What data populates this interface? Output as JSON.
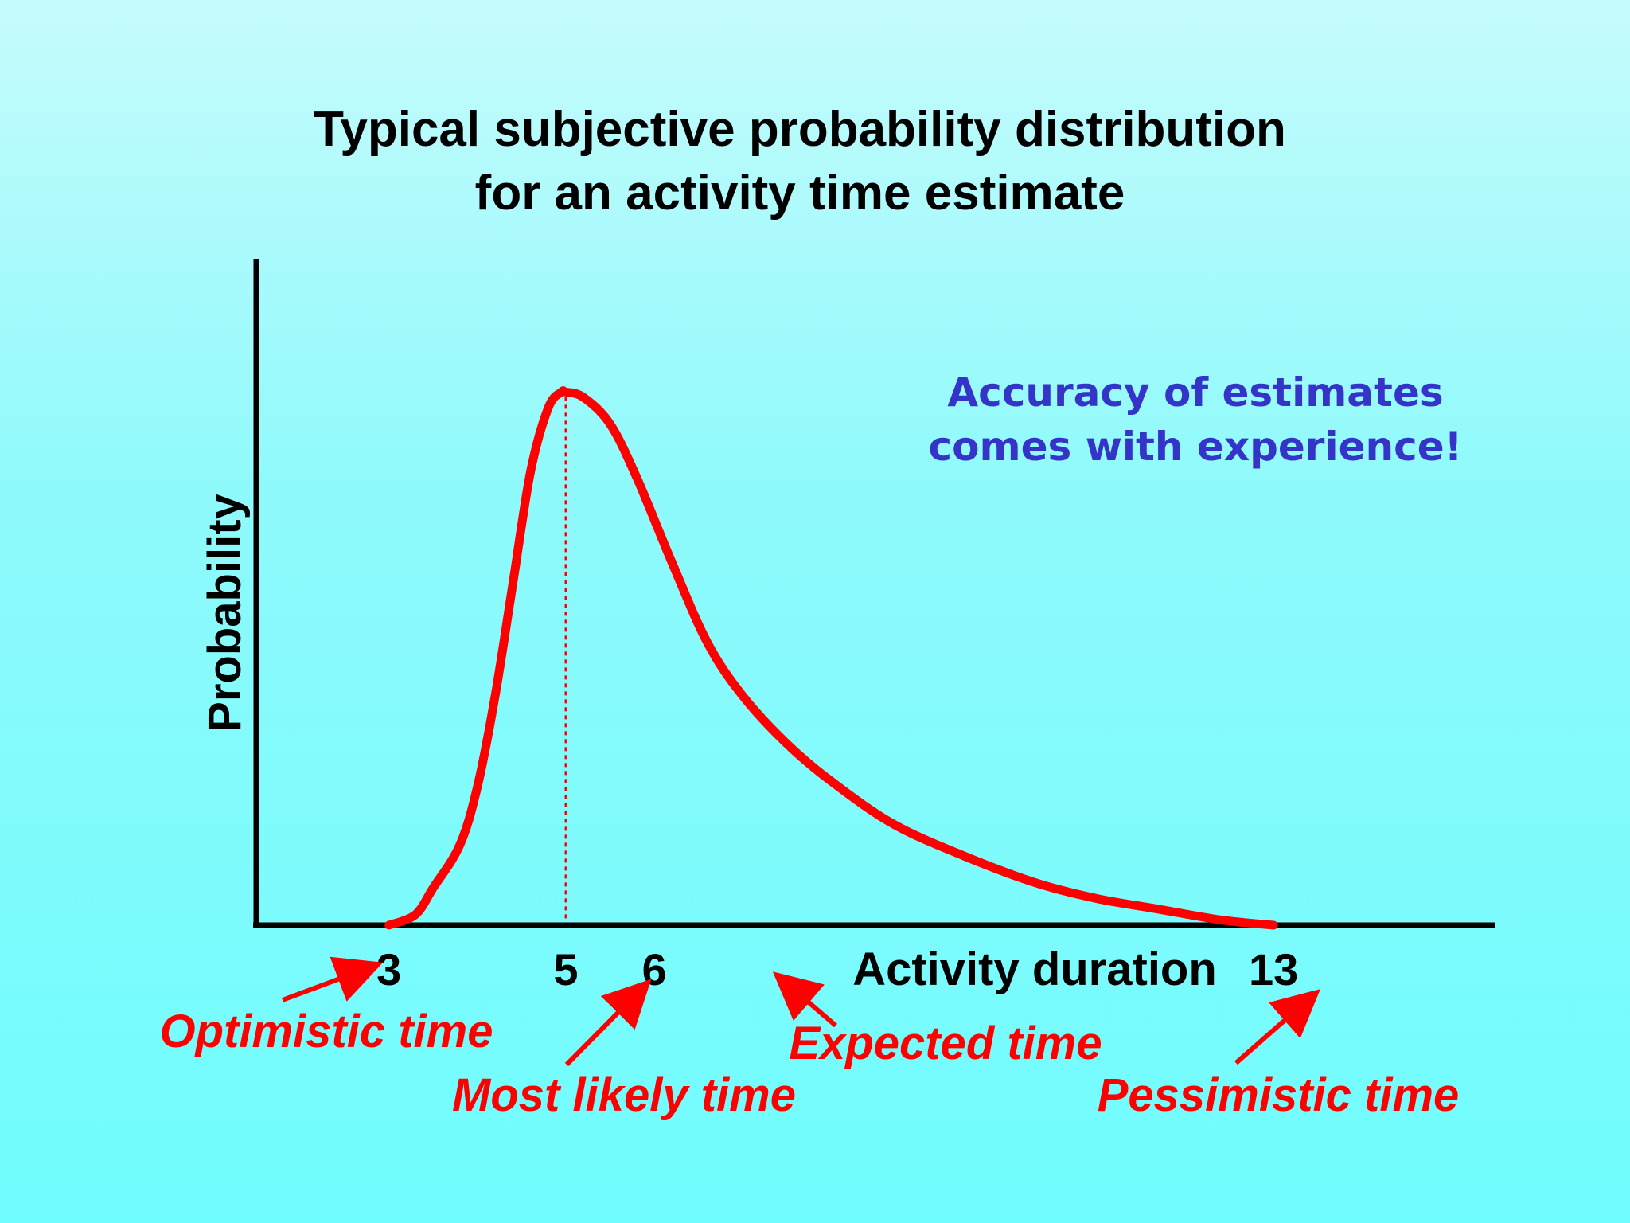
{
  "colors": {
    "curve": "#ff0000",
    "axis": "#000000",
    "note": "#3434c8",
    "callout": "#ff0000"
  },
  "chart_data": {
    "type": "line",
    "title_lines": [
      "Typical subjective probability distribution",
      "for an activity time estimate"
    ],
    "ylabel": "Probability",
    "xlabel": "Activity duration",
    "x_ticks": [
      {
        "value": 3,
        "label": "3"
      },
      {
        "value": 5,
        "label": "5"
      },
      {
        "value": 6,
        "label": "6"
      },
      {
        "value": 13,
        "label": "13"
      }
    ],
    "marker_line": {
      "x": 5,
      "style": "dotted"
    },
    "series": [
      {
        "x": [
          3,
          3.3,
          3.5,
          3.8,
          4.0,
          4.2,
          4.4,
          4.6,
          4.8,
          4.95,
          5.0,
          5.2,
          5.5,
          5.8,
          6.2,
          6.6,
          7.0,
          7.5,
          8.0,
          8.7,
          9.5,
          10.3,
          11.0,
          11.7,
          12.4,
          13.0
        ],
        "y": [
          0,
          0.02,
          0.07,
          0.15,
          0.26,
          0.43,
          0.64,
          0.85,
          0.97,
          1.0,
          1.0,
          0.99,
          0.94,
          0.84,
          0.68,
          0.53,
          0.43,
          0.34,
          0.27,
          0.19,
          0.13,
          0.08,
          0.05,
          0.03,
          0.01,
          0
        ]
      }
    ],
    "xlim": [
      1.5,
      15.5
    ],
    "ylim": [
      0,
      1.25
    ],
    "annotations": [
      {
        "text": "Optimistic time",
        "points_to": 3
      },
      {
        "text": "Most likely time",
        "points_to": 5
      },
      {
        "text": "Expected time",
        "points_to": 6
      },
      {
        "text": "Pessimistic time",
        "points_to": 13
      }
    ],
    "note_lines": [
      "Accuracy of estimates",
      "comes with experience!"
    ],
    "grid": false,
    "legend": "none"
  }
}
